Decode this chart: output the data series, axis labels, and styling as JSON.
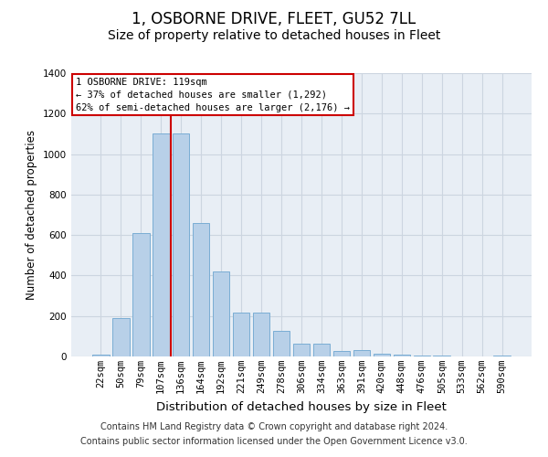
{
  "title": "1, OSBORNE DRIVE, FLEET, GU52 7LL",
  "subtitle": "Size of property relative to detached houses in Fleet",
  "xlabel": "Distribution of detached houses by size in Fleet",
  "ylabel": "Number of detached properties",
  "categories": [
    "22sqm",
    "50sqm",
    "79sqm",
    "107sqm",
    "136sqm",
    "164sqm",
    "192sqm",
    "221sqm",
    "249sqm",
    "278sqm",
    "306sqm",
    "334sqm",
    "363sqm",
    "391sqm",
    "420sqm",
    "448sqm",
    "476sqm",
    "505sqm",
    "533sqm",
    "562sqm",
    "590sqm"
  ],
  "values": [
    10,
    190,
    610,
    1100,
    1100,
    660,
    420,
    215,
    215,
    125,
    65,
    65,
    25,
    30,
    15,
    10,
    5,
    5,
    0,
    0,
    5
  ],
  "bar_color": "#b8d0e8",
  "bar_edgecolor": "#7aadd4",
  "vline_x": 3.5,
  "annotation_text_line1": "1 OSBORNE DRIVE: 119sqm",
  "annotation_text_line2": "← 37% of detached houses are smaller (1,292)",
  "annotation_text_line3": "62% of semi-detached houses are larger (2,176) →",
  "annotation_box_facecolor": "#ffffff",
  "annotation_box_edgecolor": "#cc0000",
  "vline_color": "#cc0000",
  "ylim": [
    0,
    1400
  ],
  "yticks": [
    0,
    200,
    400,
    600,
    800,
    1000,
    1200,
    1400
  ],
  "grid_color": "#ccd5e0",
  "plot_bg_color": "#e8eef5",
  "footer_line1": "Contains HM Land Registry data © Crown copyright and database right 2024.",
  "footer_line2": "Contains public sector information licensed under the Open Government Licence v3.0.",
  "title_fontsize": 12,
  "subtitle_fontsize": 10,
  "xlabel_fontsize": 9.5,
  "ylabel_fontsize": 8.5,
  "tick_fontsize": 7.5,
  "annotation_fontsize": 7.5,
  "footer_fontsize": 7
}
